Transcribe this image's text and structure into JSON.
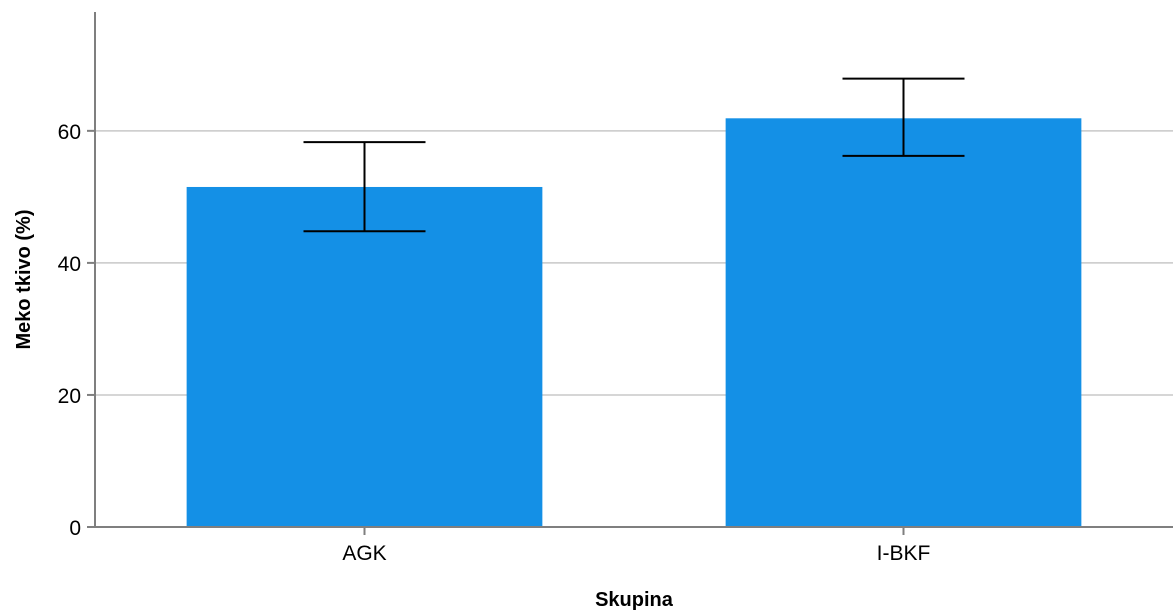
{
  "chart_data": {
    "type": "bar",
    "title": "",
    "xlabel": "Skupina",
    "ylabel": "Meko tkivo (%)",
    "categories": [
      "AGK",
      "I-BKF"
    ],
    "values": [
      51.5,
      61.9
    ],
    "error_bars": [
      {
        "low": 44.8,
        "high": 58.3
      },
      {
        "low": 56.2,
        "high": 67.9
      }
    ],
    "ylim": [
      0,
      78
    ],
    "yticks": [
      0,
      20,
      40,
      60
    ],
    "ytick_labels": [
      "0",
      "20",
      "40",
      "60"
    ],
    "grid": true,
    "legend": "none",
    "bar_color": "#1490E6",
    "grid_color": "#C8C8C8",
    "axis_color": "#7F7F7F",
    "error_bar_color": "#000000"
  }
}
